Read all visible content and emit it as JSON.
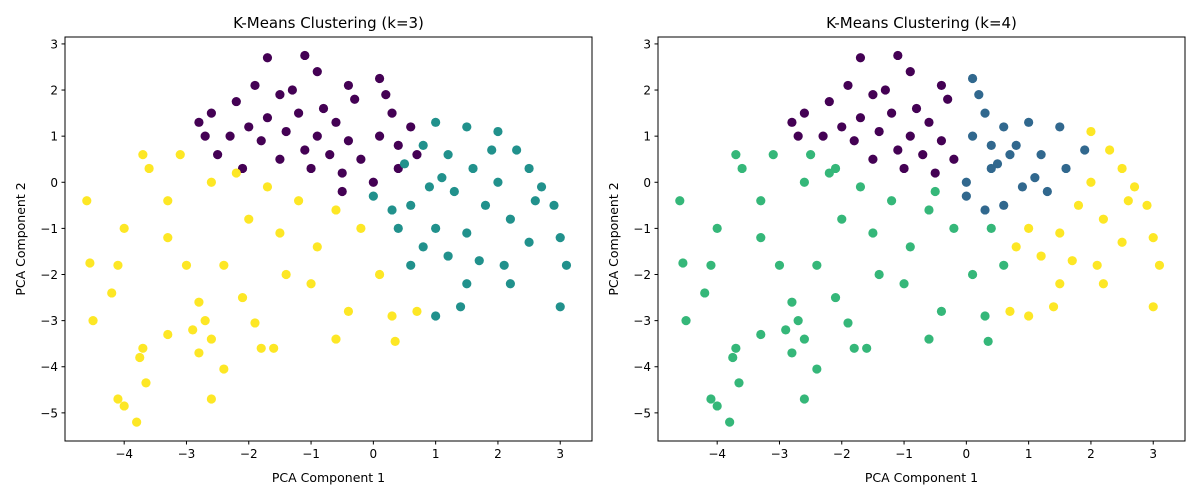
{
  "chart_data": [
    {
      "type": "scatter",
      "title": "K-Means Clustering (k=3)",
      "xlabel": "PCA Component 1",
      "ylabel": "PCA Component 2",
      "xlim": [
        -4.95,
        3.51
      ],
      "ylim": [
        -5.61,
        3.15
      ],
      "xticks": [
        {
          "value": -4,
          "label": "−4"
        },
        {
          "value": -3,
          "label": "−3"
        },
        {
          "value": -2,
          "label": "−2"
        },
        {
          "value": -1,
          "label": "−1"
        },
        0,
        1,
        2,
        3
      ],
      "yticks": [
        {
          "value": -5,
          "label": "−5"
        },
        {
          "value": -4,
          "label": "−4"
        },
        {
          "value": -3,
          "label": "−3"
        },
        {
          "value": -2,
          "label": "−2"
        },
        {
          "value": -1,
          "label": "−1"
        },
        0,
        1,
        2,
        3
      ],
      "series": [
        {
          "color": "#440154",
          "x": [
            -1.7,
            -1.1,
            -0.9,
            0.1,
            -0.4,
            -1.9,
            -2.2,
            -2.6,
            -2.8,
            -2.3,
            -2.5,
            -2.1,
            -1.5,
            -1.2,
            -0.8,
            -0.3,
            0.3,
            0.6,
            0.7,
            0.4,
            0,
            -0.5,
            -1.0,
            -1.5,
            -1.8,
            -1.4,
            -0.9,
            -0.4,
            0.1,
            -0.6,
            -1.1,
            -0.2,
            0.4,
            -1.7,
            -2.0,
            -0.7,
            -1.3,
            0.2,
            -2.7,
            -0.5
          ],
          "y": [
            2.7,
            2.75,
            2.4,
            2.25,
            2.1,
            2.1,
            1.75,
            1.5,
            1.3,
            1.0,
            0.6,
            0.3,
            1.9,
            1.5,
            1.6,
            1.8,
            1.5,
            1.2,
            0.6,
            0.3,
            0,
            0.2,
            0.3,
            0.5,
            0.9,
            1.1,
            1.0,
            0.9,
            1.0,
            1.3,
            0.7,
            0.5,
            0.8,
            1.4,
            1.2,
            0.6,
            2.0,
            1.9,
            1.0,
            -0.2
          ]
        },
        {
          "color": "#21918c",
          "x": [
            1.0,
            1.5,
            2.0,
            2.3,
            2.7,
            2.9,
            3.0,
            2.5,
            2.1,
            1.5,
            1.0,
            1.4,
            0.6,
            0.4,
            0,
            0.5,
            0.8,
            1.2,
            1.6,
            2.0,
            1.8,
            1.3,
            0.9,
            0.6,
            1.0,
            1.5,
            2.2,
            2.6,
            1.2,
            0.8,
            3.1,
            3.0,
            2.2,
            1.7,
            2.5,
            1.9,
            0.3,
            1.1
          ],
          "y": [
            1.3,
            1.2,
            1.1,
            0.7,
            -0.1,
            -0.5,
            -1.2,
            -1.3,
            -1.8,
            -2.2,
            -2.9,
            -2.7,
            -1.8,
            -1.0,
            -0.3,
            0.4,
            0.8,
            0.6,
            0.3,
            0,
            -0.5,
            -0.2,
            -0.1,
            -0.5,
            -1.0,
            -1.1,
            -0.8,
            -0.4,
            -1.6,
            -1.4,
            -1.8,
            -2.7,
            -2.2,
            -1.7,
            0.3,
            0.7,
            -0.6,
            0.1
          ]
        },
        {
          "color": "#fde725",
          "x": [
            -4.6,
            -4.5,
            -4.55,
            -4.1,
            -4.0,
            -3.8,
            -3.7,
            -3.75,
            -3.65,
            -4.2,
            -4.1,
            -4.0,
            -3.7,
            -3.6,
            -3.3,
            -3.3,
            -3.3,
            -3.0,
            -2.8,
            -2.7,
            -2.6,
            -2.6,
            -2.4,
            -2.9,
            -2.8,
            -2.4,
            -2.1,
            -1.9,
            -1.8,
            -1.6,
            -1.4,
            -1.0,
            -0.9,
            -0.6,
            -0.4,
            0.1,
            0.3,
            0.35,
            -0.2,
            -0.6,
            -1.2,
            -1.7,
            -2.2,
            -2.6,
            -1.5,
            -2.0,
            -3.1,
            0.7
          ],
          "y": [
            -0.4,
            -3.0,
            -1.75,
            -4.7,
            -4.85,
            -5.2,
            -3.6,
            -3.8,
            -4.35,
            -2.4,
            -1.8,
            -1.0,
            0.6,
            0.3,
            -0.4,
            -1.2,
            -3.3,
            -1.8,
            -2.6,
            -3.0,
            -3.4,
            -4.7,
            -4.05,
            -3.2,
            -3.7,
            -1.8,
            -2.5,
            -3.05,
            -3.6,
            -3.6,
            -2.0,
            -2.2,
            -1.4,
            -3.4,
            -2.8,
            -2.0,
            -2.9,
            -3.45,
            -1.0,
            -0.6,
            -0.4,
            -0.1,
            0.2,
            0,
            -1.1,
            -0.8,
            0.6,
            -2.8
          ]
        }
      ]
    },
    {
      "type": "scatter",
      "title": "K-Means Clustering (k=4)",
      "xlabel": "PCA Component 1",
      "ylabel": "PCA Component 2",
      "xlim": [
        -4.95,
        3.51
      ],
      "ylim": [
        -5.61,
        3.15
      ],
      "xticks": [
        {
          "value": -4,
          "label": "−4"
        },
        {
          "value": -3,
          "label": "−3"
        },
        {
          "value": -2,
          "label": "−2"
        },
        {
          "value": -1,
          "label": "−1"
        },
        0,
        1,
        2,
        3
      ],
      "yticks": [
        {
          "value": -5,
          "label": "−5"
        },
        {
          "value": -4,
          "label": "−4"
        },
        {
          "value": -3,
          "label": "−3"
        },
        {
          "value": -2,
          "label": "−2"
        },
        {
          "value": -1,
          "label": "−1"
        },
        0,
        1,
        2,
        3
      ],
      "series": [
        {
          "color": "#440154",
          "x": [
            -1.7,
            -1.1,
            -0.9,
            -0.4,
            -1.9,
            -2.2,
            -2.6,
            -2.8,
            -2.3,
            -1.5,
            -1.2,
            -0.8,
            -0.3,
            -1.5,
            -1.8,
            -1.4,
            -0.9,
            -0.4,
            -0.6,
            -1.1,
            -0.2,
            -1.7,
            -2.0,
            -0.7,
            -1.3,
            -2.7,
            -1.0,
            -0.5
          ],
          "y": [
            2.7,
            2.75,
            2.4,
            2.1,
            2.1,
            1.75,
            1.5,
            1.3,
            1.0,
            1.9,
            1.5,
            1.6,
            1.8,
            0.5,
            0.9,
            1.1,
            1.0,
            0.9,
            1.3,
            0.7,
            0.5,
            1.4,
            1.2,
            0.6,
            2.0,
            1.0,
            0.3,
            0.2
          ]
        },
        {
          "color": "#31688e",
          "x": [
            0.1,
            0.3,
            0.6,
            0.7,
            0.4,
            0,
            0.1,
            0.4,
            0.2,
            1.0,
            1.5,
            0.5,
            0.8,
            1.2,
            1.3,
            0.9,
            0.6,
            0.3,
            1.1,
            1.6,
            1.9,
            0
          ],
          "y": [
            2.25,
            1.5,
            1.2,
            0.6,
            0.3,
            0,
            1.0,
            0.8,
            1.9,
            1.3,
            1.2,
            0.4,
            0.8,
            0.6,
            -0.2,
            -0.1,
            -0.5,
            -0.6,
            0.1,
            0.3,
            0.7,
            -0.3
          ]
        },
        {
          "color": "#35b779",
          "x": [
            -4.6,
            -4.5,
            -4.55,
            -4.1,
            -4.0,
            -3.8,
            -3.7,
            -3.75,
            -3.65,
            -4.2,
            -4.1,
            -4.0,
            -3.7,
            -3.6,
            -3.3,
            -3.3,
            -3.3,
            -3.0,
            -2.8,
            -2.7,
            -2.6,
            -2.6,
            -2.4,
            -2.9,
            -2.8,
            -2.4,
            -2.1,
            -1.9,
            -1.8,
            -1.6,
            -1.4,
            -1.0,
            -0.9,
            -0.6,
            -0.4,
            0.1,
            0.3,
            0.35,
            -0.2,
            -0.6,
            -1.2,
            -1.7,
            -2.2,
            -2.6,
            -1.5,
            -2.0,
            -3.1,
            -2.5,
            -2.1,
            -0.5,
            0.4,
            0.6
          ],
          "y": [
            -0.4,
            -3.0,
            -1.75,
            -4.7,
            -4.85,
            -5.2,
            -3.6,
            -3.8,
            -4.35,
            -2.4,
            -1.8,
            -1.0,
            0.6,
            0.3,
            -0.4,
            -1.2,
            -3.3,
            -1.8,
            -2.6,
            -3.0,
            -3.4,
            -4.7,
            -4.05,
            -3.2,
            -3.7,
            -1.8,
            -2.5,
            -3.05,
            -3.6,
            -3.6,
            -2.0,
            -2.2,
            -1.4,
            -3.4,
            -2.8,
            -2.0,
            -2.9,
            -3.45,
            -1.0,
            -0.6,
            -0.4,
            -0.1,
            0.2,
            0,
            -1.1,
            -0.8,
            0.6,
            0.6,
            0.3,
            -0.2,
            -1.0,
            -1.8
          ]
        },
        {
          "color": "#fde725",
          "x": [
            0.7,
            2.0,
            2.3,
            2.7,
            2.9,
            3.0,
            2.5,
            2.1,
            1.5,
            1.0,
            1.4,
            2.0,
            1.8,
            1.0,
            1.5,
            2.2,
            2.6,
            1.2,
            0.8,
            3.1,
            3.0,
            2.2,
            1.7,
            2.5
          ],
          "y": [
            -2.8,
            1.1,
            0.7,
            -0.1,
            -0.5,
            -1.2,
            -1.3,
            -1.8,
            -2.2,
            -2.9,
            -2.7,
            0,
            -0.5,
            -1.0,
            -1.1,
            -0.8,
            -0.4,
            -1.6,
            -1.4,
            -1.8,
            -2.7,
            -2.2,
            -1.7,
            0.3
          ]
        }
      ]
    }
  ]
}
